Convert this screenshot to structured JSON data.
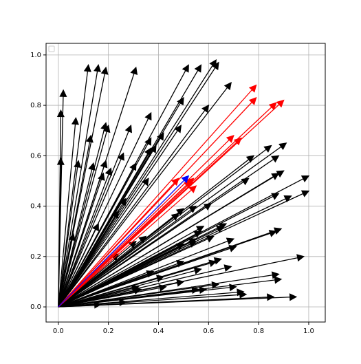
{
  "chart_data": {
    "type": "quiver",
    "xlim": [
      -0.049,
      1.066
    ],
    "ylim": [
      -0.06,
      1.046
    ],
    "xticks": [
      {
        "value": 0,
        "label": "0.0"
      },
      0.2,
      0.4,
      0.6,
      0.8,
      {
        "value": 1,
        "label": "1.0"
      }
    ],
    "yticks": [
      {
        "value": 0,
        "label": "0.0"
      },
      0.2,
      0.4,
      0.6,
      0.8,
      {
        "value": 1,
        "label": "1.0"
      }
    ],
    "grid": true,
    "legend": "upper left",
    "series": [
      {
        "color": "#000000",
        "x": [
          0.01,
          0.02,
          0.01,
          0.07,
          0.12,
          0.16,
          0.19,
          0.31,
          0.52,
          0.57,
          0.63,
          0.64,
          0.69,
          0.6,
          0.5,
          0.37,
          0.29,
          0.19,
          0.2,
          0.13,
          0.08,
          0.14,
          0.19,
          0.21,
          0.18,
          0.26,
          0.37,
          0.42,
          0.49,
          0.39,
          0.31,
          0.27,
          0.36,
          0.37,
          0.24,
          0.16,
          0.06,
          0.31,
          0.24,
          0.55,
          0.61,
          0.5,
          0.48,
          0.58,
          0.66,
          0.67,
          0.57,
          0.55,
          0.5,
          0.55,
          0.7,
          0.62,
          0.71,
          0.89,
          0.87,
          0.76,
          0.78,
          0.85,
          0.91,
          0.88,
          0.88,
          0.9,
          0.93,
          1.0,
          1.0,
          0.88,
          0.98,
          0.69,
          0.63,
          0.65,
          0.57,
          0.5,
          0.5,
          0.88,
          0.89,
          0.64,
          0.71,
          0.74,
          0.59,
          0.43,
          0.33,
          0.95,
          0.86,
          0.75,
          0.27,
          0.17,
          0.42,
          0.32,
          0.38,
          0.35,
          0.56
        ],
        "y": [
          0.78,
          0.86,
          0.59,
          0.75,
          0.96,
          0.96,
          0.95,
          0.95,
          0.96,
          0.96,
          0.98,
          0.97,
          0.89,
          0.8,
          0.83,
          0.77,
          0.72,
          0.73,
          0.72,
          0.68,
          0.58,
          0.57,
          0.58,
          0.55,
          0.53,
          0.61,
          0.67,
          0.69,
          0.72,
          0.64,
          0.57,
          0.43,
          0.51,
          0.63,
          0.38,
          0.33,
          0.29,
          0.26,
          0.21,
          0.4,
          0.41,
          0.39,
          0.37,
          0.32,
          0.32,
          0.33,
          0.3,
          0.27,
          0.25,
          0.26,
          0.27,
          0.28,
          0.24,
          0.31,
          0.3,
          0.51,
          0.6,
          0.64,
          0.65,
          0.6,
          0.53,
          0.54,
          0.44,
          0.52,
          0.46,
          0.45,
          0.2,
          0.16,
          0.18,
          0.19,
          0.15,
          0.18,
          0.1,
          0.13,
          0.11,
          0.09,
          0.08,
          0.06,
          0.07,
          0.08,
          0.07,
          0.04,
          0.04,
          0.05,
          0.02,
          0.01,
          0.12,
          0.08,
          0.14,
          0.28,
          0.07
        ]
      },
      {
        "color": "#ff0000",
        "x": [
          0.79,
          0.79,
          0.87,
          0.9,
          0.7,
          0.73,
          0.48,
          0.54,
          0.53,
          0.55
        ],
        "y": [
          0.88,
          0.83,
          0.81,
          0.82,
          0.68,
          0.67,
          0.51,
          0.51,
          0.5,
          0.48
        ]
      },
      {
        "color": "#0000ff",
        "x": [
          0.52
        ],
        "y": [
          0.52
        ]
      }
    ]
  }
}
